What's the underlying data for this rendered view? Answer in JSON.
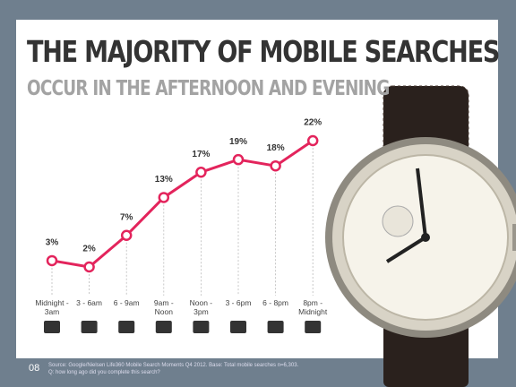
{
  "chart_data": {
    "type": "line",
    "title": "THE MAJORITY OF MOBILE SEARCHES",
    "subtitle": "OCCUR IN THE AFTERNOON AND EVENING",
    "categories": [
      "Midnight - 3am",
      "3 - 6am",
      "6 - 9am",
      "9am - Noon",
      "Noon - 3pm",
      "3 - 6pm",
      "6 - 8pm",
      "8pm - Midnight"
    ],
    "values": [
      3,
      2,
      7,
      13,
      17,
      19,
      18,
      22
    ],
    "value_labels": [
      "3%",
      "2%",
      "7%",
      "13%",
      "17%",
      "19%",
      "18%",
      "22%"
    ],
    "color": "#e3245c",
    "page_number": "08",
    "source": [
      "Source: Google/Nielsen Life360 Mobile Search Moments Q4 2012. Base: Total mobile searches n=6,303.",
      "Q: how long ago did you complete this search?"
    ]
  }
}
